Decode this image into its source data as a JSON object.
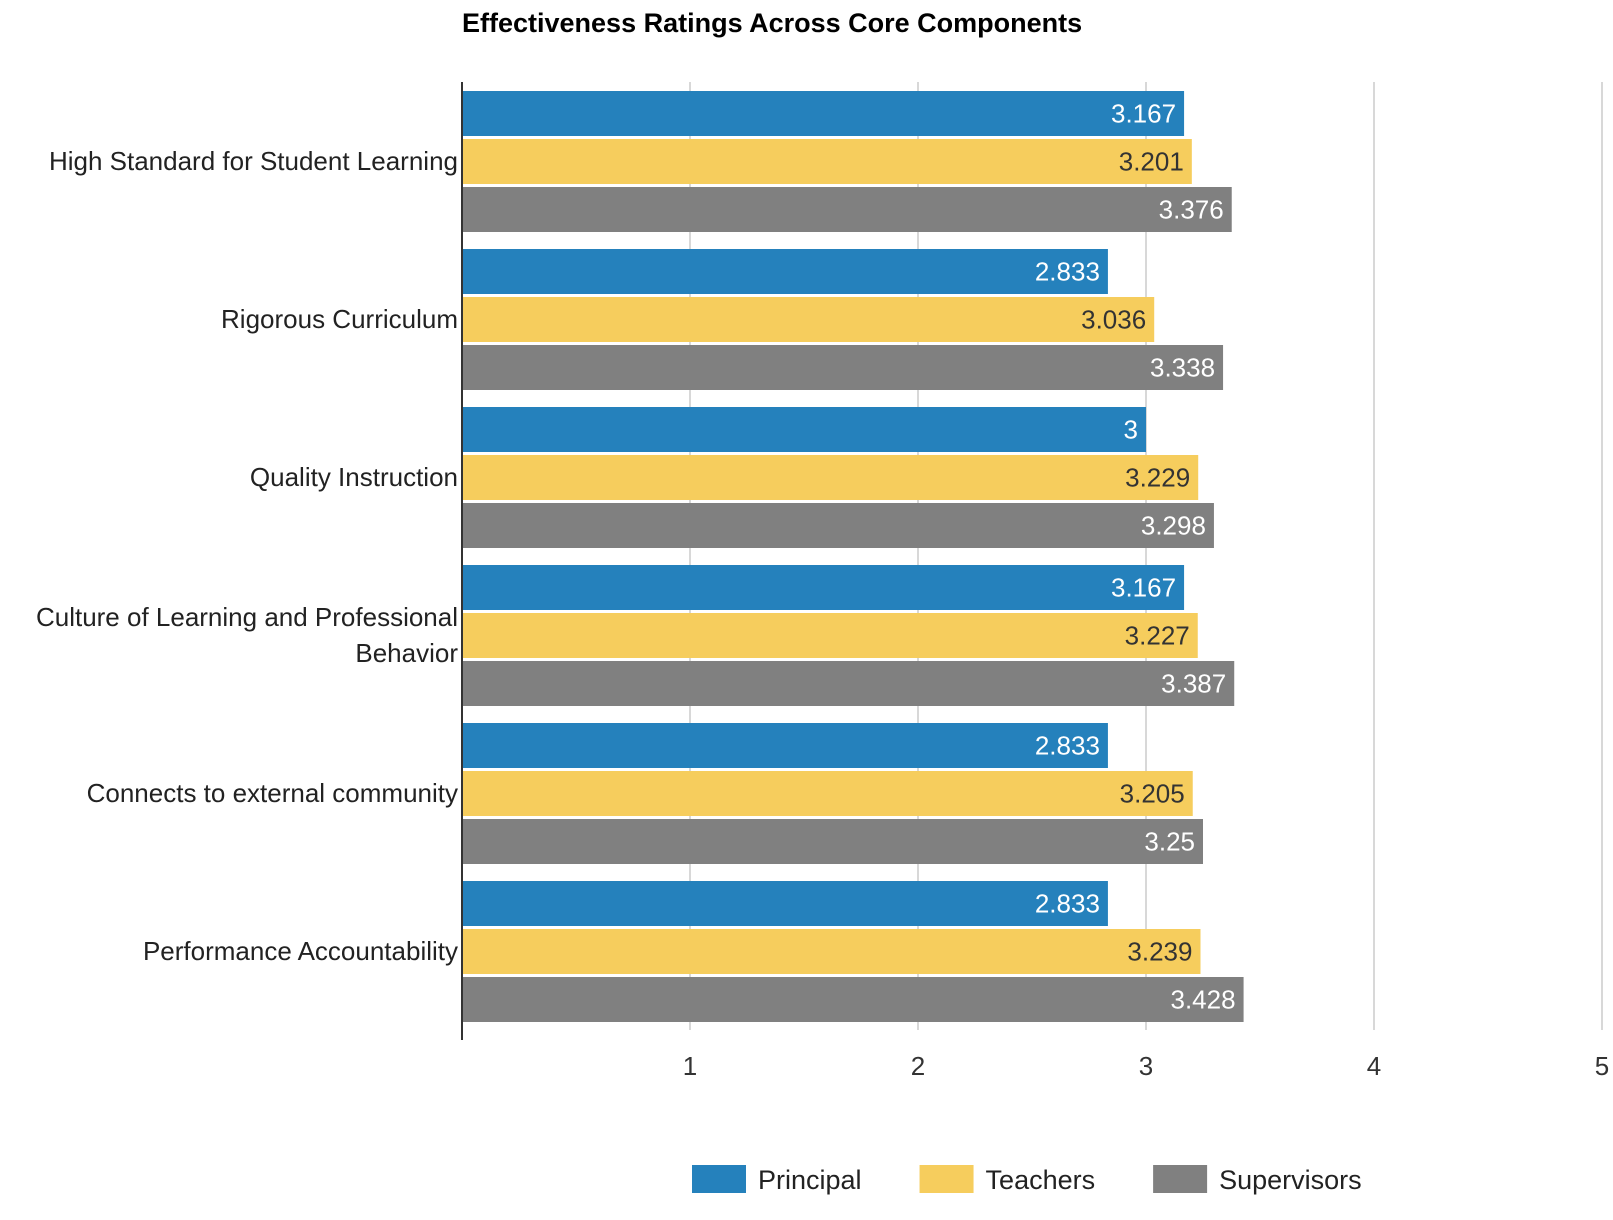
{
  "chart_data": {
    "type": "bar",
    "orientation": "horizontal",
    "title": "Effectiveness Ratings Across Core Components",
    "categories": [
      "High Standard for Student Learning",
      "Rigorous Curriculum",
      "Quality Instruction",
      "Culture of Learning and Professional Behavior",
      "Connects to external community",
      "Performance Accountability"
    ],
    "series": [
      {
        "name": "Principal",
        "color": "#2581bc",
        "label_color": "#ffffff",
        "values": [
          3.167,
          2.833,
          3,
          3.167,
          2.833,
          2.833
        ]
      },
      {
        "name": "Teachers",
        "color": "#f6cd5d",
        "label_color": "#333333",
        "values": [
          3.201,
          3.036,
          3.229,
          3.227,
          3.205,
          3.239
        ]
      },
      {
        "name": "Supervisors",
        "color": "#808080",
        "label_color": "#ffffff",
        "values": [
          3.376,
          3.338,
          3.298,
          3.387,
          3.25,
          3.428
        ]
      }
    ],
    "xlim": [
      0,
      5
    ],
    "xticks": [
      1,
      2,
      3,
      4,
      5
    ],
    "xlabel": "",
    "ylabel": "",
    "grid": true,
    "legend_position": "bottom"
  }
}
